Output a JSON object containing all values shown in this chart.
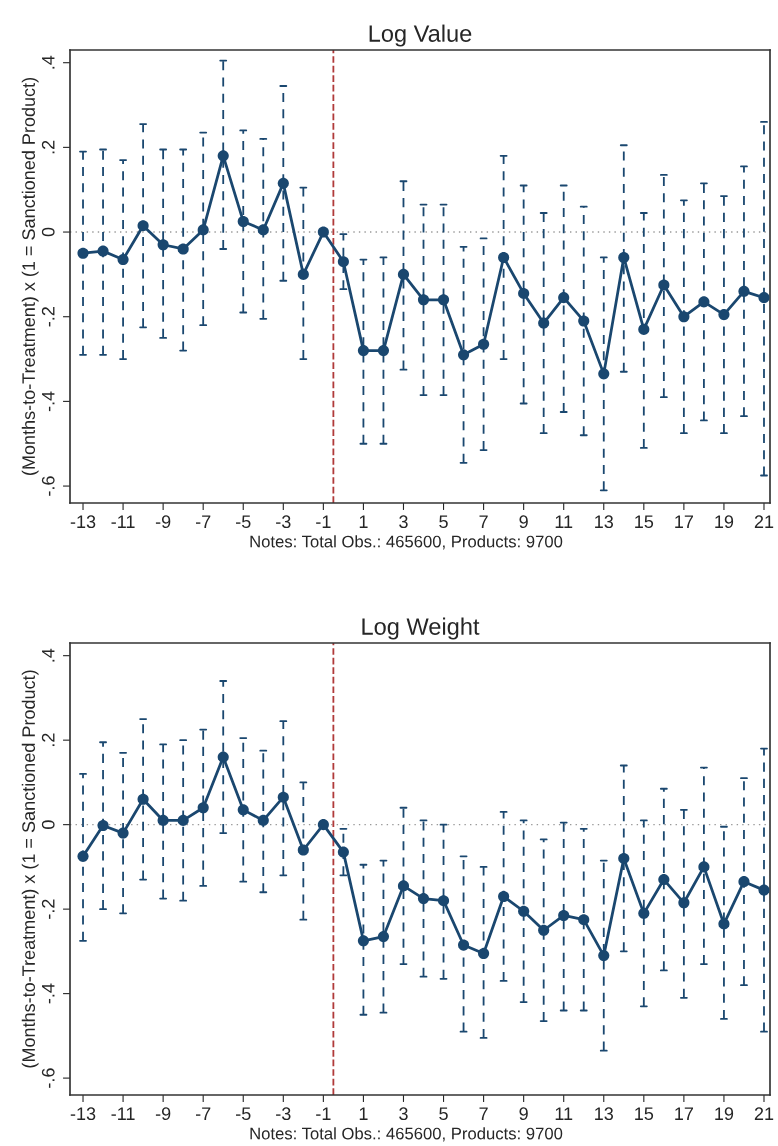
{
  "chart_data": [
    {
      "type": "line",
      "title": "Log Value",
      "ylabel": "(Months-to-Treatment) x (1 = Sanctioned Product)",
      "annotations": [
        "Notes: Total Obs.: 465600, Products: 9700"
      ],
      "x": [
        -13,
        -12,
        -11,
        -10,
        -9,
        -8,
        -7,
        -6,
        -5,
        -4,
        -3,
        -2,
        -1,
        0,
        1,
        2,
        3,
        4,
        5,
        6,
        7,
        8,
        9,
        10,
        11,
        12,
        13,
        14,
        15,
        16,
        17,
        18,
        19,
        20,
        21
      ],
      "series": [
        {
          "color": "#1a476f",
          "marker": "circle",
          "line_style": "solid",
          "values": [
            -0.05,
            -0.045,
            -0.065,
            0.015,
            -0.03,
            -0.04,
            0.005,
            0.18,
            0.025,
            0.005,
            0.115,
            -0.1,
            0,
            -0.07,
            -0.28,
            -0.28,
            -0.1,
            -0.16,
            -0.16,
            -0.29,
            -0.265,
            -0.06,
            -0.145,
            -0.215,
            -0.155,
            -0.21,
            -0.335,
            -0.06,
            -0.23,
            -0.125,
            -0.2,
            -0.165,
            -0.195,
            -0.14,
            -0.155
          ],
          "errors": [
            [
              -0.29,
              0.19
            ],
            [
              -0.29,
              0.195
            ],
            [
              -0.3,
              0.17
            ],
            [
              -0.225,
              0.255
            ],
            [
              -0.25,
              0.195
            ],
            [
              -0.28,
              0.195
            ],
            [
              -0.22,
              0.235
            ],
            [
              -0.04,
              0.405
            ],
            [
              -0.19,
              0.24
            ],
            [
              -0.205,
              0.22
            ],
            [
              -0.115,
              0.345
            ],
            [
              -0.3,
              0.105
            ],
            null,
            [
              -0.135,
              -0.005
            ],
            [
              -0.5,
              -0.065
            ],
            [
              -0.5,
              -0.06
            ],
            [
              -0.325,
              0.12
            ],
            [
              -0.385,
              0.065
            ],
            [
              -0.385,
              0.065
            ],
            [
              -0.545,
              -0.035
            ],
            [
              -0.515,
              -0.015
            ],
            [
              -0.3,
              0.18
            ],
            [
              -0.405,
              0.11
            ],
            [
              -0.475,
              0.045
            ],
            [
              -0.425,
              0.11
            ],
            [
              -0.48,
              0.06
            ],
            [
              -0.61,
              -0.06
            ],
            [
              -0.33,
              0.205
            ],
            [
              -0.51,
              0.045
            ],
            [
              -0.39,
              0.135
            ],
            [
              -0.475,
              0.075
            ],
            [
              -0.445,
              0.115
            ],
            [
              -0.475,
              0.085
            ],
            [
              -0.435,
              0.155
            ],
            [
              -0.575,
              0.26
            ]
          ]
        }
      ],
      "xlim": [
        -13.65,
        21.3
      ],
      "xticks": [
        -13,
        -11,
        -9,
        -7,
        -5,
        -3,
        -1,
        1,
        3,
        5,
        7,
        9,
        11,
        13,
        15,
        17,
        19,
        21
      ],
      "ylim": [
        -0.64,
        0.43
      ],
      "yticks": [
        {
          "value": -0.6,
          "label": "-.6"
        },
        {
          "value": -0.4,
          "label": "-.4"
        },
        {
          "value": -0.2,
          "label": "-.2"
        },
        0,
        {
          "value": 0.2,
          "label": ".2"
        },
        {
          "value": 0.4,
          "label": ".4"
        }
      ],
      "ref_lines": [
        {
          "axis": "y",
          "value": 0,
          "color": "#999999",
          "line_style": "dotted"
        },
        {
          "axis": "x",
          "value": -0.5,
          "color": "#b03a3a",
          "line_style": "dashed"
        }
      ]
    },
    {
      "type": "line",
      "title": "Log Weight",
      "ylabel": "(Months-to-Treatment) x (1 = Sanctioned Product)",
      "annotations": [
        "Notes: Total Obs.: 465600, Products: 9700"
      ],
      "x": [
        -13,
        -12,
        -11,
        -10,
        -9,
        -8,
        -7,
        -6,
        -5,
        -4,
        -3,
        -2,
        -1,
        0,
        1,
        2,
        3,
        4,
        5,
        6,
        7,
        8,
        9,
        10,
        11,
        12,
        13,
        14,
        15,
        16,
        17,
        18,
        19,
        20,
        21
      ],
      "series": [
        {
          "color": "#1a476f",
          "marker": "circle",
          "line_style": "solid",
          "values": [
            -0.075,
            -0.002,
            -0.02,
            0.06,
            0.01,
            0.01,
            0.04,
            0.16,
            0.035,
            0.01,
            0.065,
            -0.06,
            0,
            -0.065,
            -0.275,
            -0.265,
            -0.145,
            -0.175,
            -0.18,
            -0.285,
            -0.305,
            -0.17,
            -0.205,
            -0.25,
            -0.215,
            -0.225,
            -0.31,
            -0.08,
            -0.21,
            -0.13,
            -0.185,
            -0.1,
            -0.235,
            -0.135,
            -0.155
          ],
          "errors": [
            [
              -0.275,
              0.12
            ],
            [
              -0.2,
              0.195
            ],
            [
              -0.21,
              0.17
            ],
            [
              -0.13,
              0.25
            ],
            [
              -0.175,
              0.19
            ],
            [
              -0.18,
              0.2
            ],
            [
              -0.145,
              0.225
            ],
            [
              -0.02,
              0.34
            ],
            [
              -0.135,
              0.205
            ],
            [
              -0.16,
              0.175
            ],
            [
              -0.12,
              0.245
            ],
            [
              -0.225,
              0.1
            ],
            null,
            [
              -0.12,
              -0.01
            ],
            [
              -0.45,
              -0.095
            ],
            [
              -0.445,
              -0.085
            ],
            [
              -0.33,
              0.04
            ],
            [
              -0.36,
              0.01
            ],
            [
              -0.365,
              0.0
            ],
            [
              -0.49,
              -0.075
            ],
            [
              -0.505,
              -0.1
            ],
            [
              -0.37,
              0.03
            ],
            [
              -0.42,
              0.01
            ],
            [
              -0.465,
              -0.035
            ],
            [
              -0.44,
              0.005
            ],
            [
              -0.44,
              -0.01
            ],
            [
              -0.535,
              -0.085
            ],
            [
              -0.3,
              0.14
            ],
            [
              -0.43,
              0.01
            ],
            [
              -0.345,
              0.085
            ],
            [
              -0.41,
              0.035
            ],
            [
              -0.33,
              0.135
            ],
            [
              -0.46,
              -0.005
            ],
            [
              -0.38,
              0.11
            ],
            [
              -0.49,
              0.18
            ]
          ]
        }
      ],
      "xlim": [
        -13.65,
        21.3
      ],
      "xticks": [
        -13,
        -11,
        -9,
        -7,
        -5,
        -3,
        -1,
        1,
        3,
        5,
        7,
        9,
        11,
        13,
        15,
        17,
        19,
        21
      ],
      "ylim": [
        -0.64,
        0.43
      ],
      "yticks": [
        {
          "value": -0.6,
          "label": "-.6"
        },
        {
          "value": -0.4,
          "label": "-.4"
        },
        {
          "value": -0.2,
          "label": "-.2"
        },
        0,
        {
          "value": 0.2,
          "label": ".2"
        },
        {
          "value": 0.4,
          "label": ".4"
        }
      ],
      "ref_lines": [
        {
          "axis": "y",
          "value": 0,
          "color": "#999999",
          "line_style": "dotted"
        },
        {
          "axis": "x",
          "value": -0.5,
          "color": "#b03a3a",
          "line_style": "dashed"
        }
      ]
    }
  ]
}
